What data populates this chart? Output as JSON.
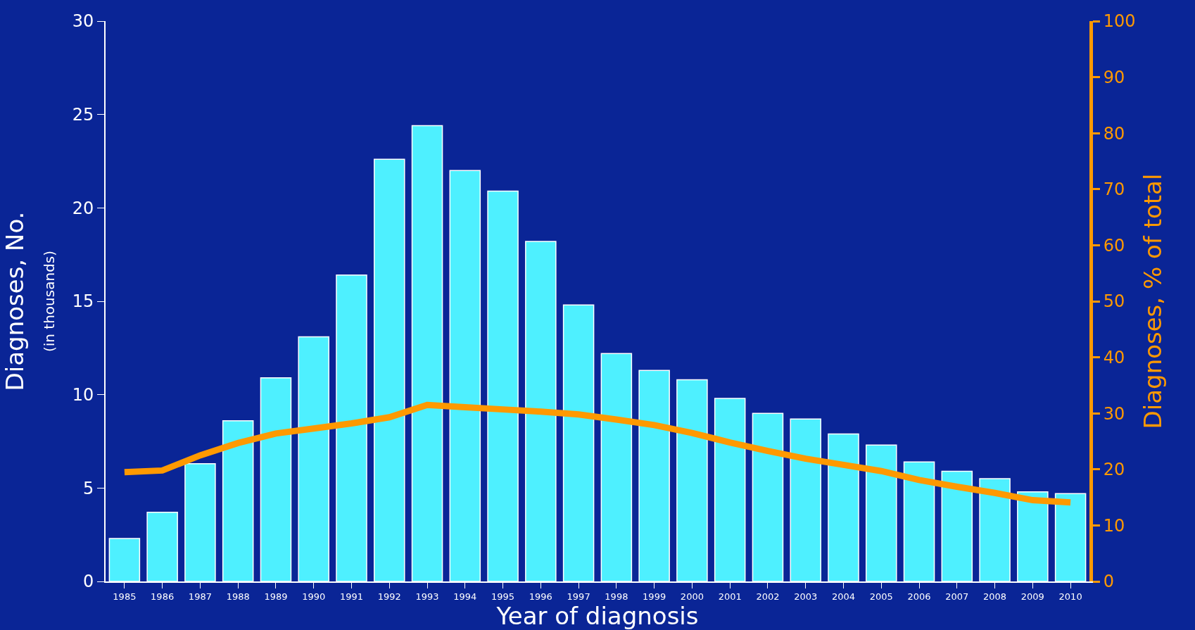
{
  "chart_data": {
    "type": "bar",
    "xlabel": "Year of diagnosis",
    "ylabel": "Diagnoses, No.\n(in thousands)",
    "y2label": "Diagnoses, % of total",
    "categories": [
      "1985",
      "1986",
      "1987",
      "1988",
      "1989",
      "1990",
      "1991",
      "1992",
      "1993",
      "1994",
      "1995",
      "1996",
      "1997",
      "1998",
      "1999",
      "2000",
      "2001",
      "2002",
      "2003",
      "2004",
      "2005",
      "2006",
      "2007",
      "2008",
      "2009",
      "2010"
    ],
    "series": [
      {
        "color": "#4ef0ff",
        "values": [
          2.3,
          3.7,
          6.3,
          8.6,
          10.9,
          13.1,
          16.4,
          22.6,
          24.4,
          22.0,
          20.9,
          18.2,
          14.8,
          12.2,
          11.3,
          10.8,
          9.8,
          9.0,
          8.7,
          7.9,
          7.3,
          6.4,
          5.9,
          5.5,
          4.8,
          4.7
        ]
      },
      {
        "type": "line",
        "axis": "y2",
        "color": "#ff9900",
        "values": [
          19.5,
          19.8,
          22.5,
          24.7,
          26.4,
          27.3,
          28.2,
          29.3,
          31.5,
          31.1,
          30.7,
          30.3,
          29.8,
          28.9,
          27.9,
          26.5,
          24.8,
          23.3,
          21.9,
          20.8,
          19.7,
          18.1,
          16.9,
          15.8,
          14.5,
          14.1
        ]
      }
    ],
    "ylim": [
      0,
      30
    ],
    "yticks": [
      0,
      5,
      10,
      15,
      20,
      25,
      30
    ],
    "y2lim": [
      0,
      100
    ],
    "y2ticks": [
      0,
      10,
      20,
      30,
      40,
      50,
      60,
      70,
      80,
      90,
      100
    ],
    "grid": false,
    "marker": "none",
    "line_style": "solid"
  }
}
